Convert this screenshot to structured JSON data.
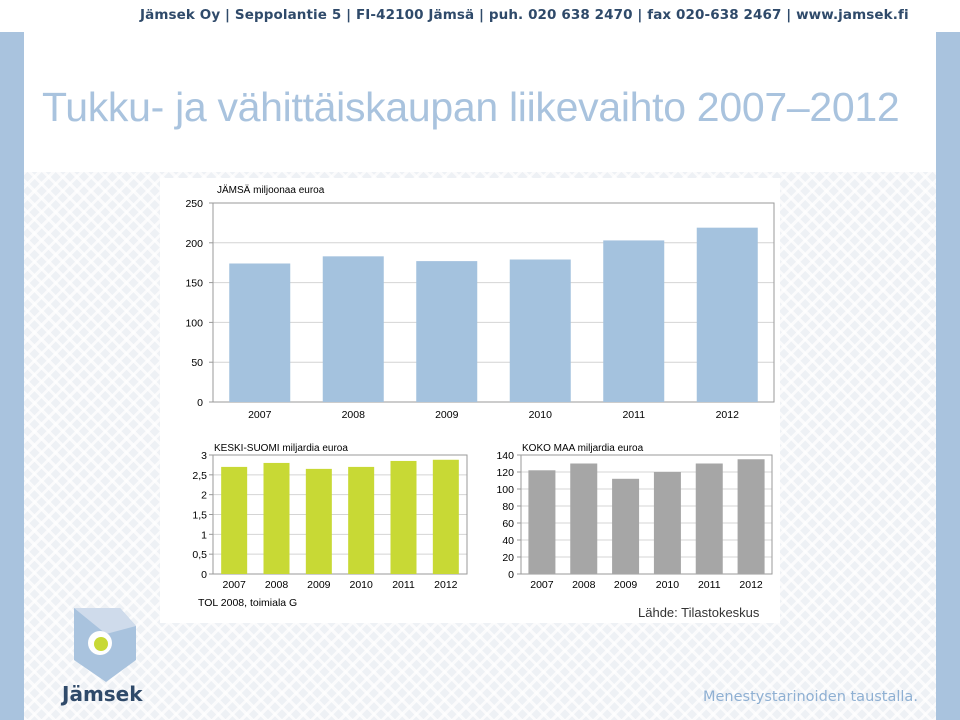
{
  "header": {
    "info_line": "Jämsek Oy  |  Seppolantie 5  |  FI-42100 Jämsä  |  puh. 020 638 2470  |  fax 020-638 2467  |  www.jamsek.fi"
  },
  "slide": {
    "title": "Tukku- ja vähittäiskaupan liikevaihto 2007–2012",
    "footnote": "TOL 2008, toimiala G",
    "source": "Lähde: Tilastokeskus",
    "logo_text": "Jämsek",
    "tagline": "Menestystarinoiden taustalla."
  },
  "colors": {
    "jamsa_bar": "#a4c2de",
    "keski_suomi_bar": "#c8d935",
    "koko_maa_bar": "#a6a6a6"
  },
  "chart_data": [
    {
      "type": "bar",
      "title": "JÄMSÄ miljoonaa euroa",
      "categories": [
        "2007",
        "2008",
        "2009",
        "2010",
        "2011",
        "2012"
      ],
      "values": [
        174,
        183,
        177,
        179,
        203,
        219
      ],
      "ylim": [
        0,
        250
      ],
      "yticks": [
        "0",
        "50",
        "100",
        "150",
        "200",
        "250"
      ],
      "grid": true
    },
    {
      "type": "bar",
      "title": "KESKI-SUOMI miljardia euroa",
      "categories": [
        "2007",
        "2008",
        "2009",
        "2010",
        "2011",
        "2012"
      ],
      "values": [
        2.7,
        2.8,
        2.65,
        2.7,
        2.85,
        2.88
      ],
      "ylim": [
        0,
        3
      ],
      "yticks": [
        "0",
        "0,5",
        "1",
        "1,5",
        "2",
        "2,5",
        "3"
      ],
      "grid": true
    },
    {
      "type": "bar",
      "title": "KOKO MAA miljardia euroa",
      "categories": [
        "2007",
        "2008",
        "2009",
        "2010",
        "2011",
        "2012"
      ],
      "values": [
        122,
        130,
        112,
        120,
        130,
        135
      ],
      "ylim": [
        0,
        140
      ],
      "yticks": [
        "0",
        "20",
        "40",
        "60",
        "80",
        "100",
        "120",
        "140"
      ],
      "grid": true
    }
  ]
}
